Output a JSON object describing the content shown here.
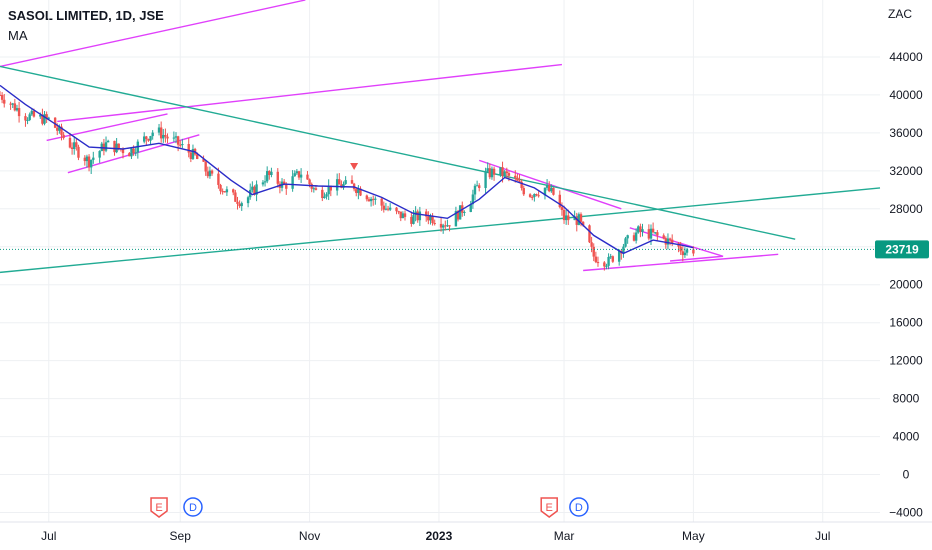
{
  "header": {
    "title": "SASOL LIMITED, 1D, JSE",
    "indicator": "MA"
  },
  "colors": {
    "up": "#26a69a",
    "down": "#ef5350",
    "ma": "#2a2cc8",
    "trend_magenta": "#e040fb",
    "trend_teal": "#22ab94",
    "last_price_bg": "#089981",
    "grid": "#eef0f3"
  },
  "chart_data": {
    "type": "candlestick",
    "currency_label": "ZAC",
    "last_price_label": "23719",
    "last_price": 23719,
    "y_ticks": [
      "44000",
      "40000",
      "36000",
      "32000",
      "28000",
      "24000",
      "20000",
      "16000",
      "12000",
      "8000",
      "4000",
      "0",
      "−4000"
    ],
    "y_tick_values": [
      44000,
      40000,
      36000,
      32000,
      28000,
      24000,
      20000,
      16000,
      12000,
      8000,
      4000,
      0,
      -4000
    ],
    "ylim": [
      -5000,
      50000
    ],
    "x_ticks": [
      "Jul",
      "Sep",
      "Nov",
      "2023",
      "Mar",
      "May",
      "Jul"
    ],
    "x_tick_dates": [
      "2022-07-01",
      "2022-09-01",
      "2022-11-01",
      "2023-01-01",
      "2023-03-01",
      "2023-05-01",
      "2023-07-01"
    ],
    "x_bold": [
      "2023"
    ],
    "xlim": [
      "2022-06-08",
      "2023-07-28"
    ],
    "events": [
      {
        "kind": "E",
        "date": "2022-08-22"
      },
      {
        "kind": "D",
        "date": "2022-09-07"
      },
      {
        "kind": "E",
        "date": "2023-02-22"
      },
      {
        "kind": "D",
        "date": "2023-03-08"
      }
    ],
    "flag": {
      "date": "2022-11-22",
      "price": 32400
    },
    "price_path": [
      [
        "2022-06-08",
        40000
      ],
      [
        "2022-06-20",
        37800
      ],
      [
        "2022-07-01",
        37400
      ],
      [
        "2022-07-10",
        35000
      ],
      [
        "2022-07-20",
        33000
      ],
      [
        "2022-07-28",
        34800
      ],
      [
        "2022-08-08",
        34000
      ],
      [
        "2022-08-20",
        36300
      ],
      [
        "2022-08-30",
        35000
      ],
      [
        "2022-09-08",
        33500
      ],
      [
        "2022-09-15",
        31500
      ],
      [
        "2022-09-25",
        29300
      ],
      [
        "2022-10-01",
        28700
      ],
      [
        "2022-10-12",
        31600
      ],
      [
        "2022-10-20",
        30400
      ],
      [
        "2022-10-28",
        31800
      ],
      [
        "2022-11-05",
        29500
      ],
      [
        "2022-11-12",
        30500
      ],
      [
        "2022-11-22",
        30400
      ],
      [
        "2022-12-01",
        29000
      ],
      [
        "2022-12-10",
        27600
      ],
      [
        "2022-12-18",
        27000
      ],
      [
        "2022-12-26",
        27300
      ],
      [
        "2023-01-05",
        26400
      ],
      [
        "2023-01-15",
        28600
      ],
      [
        "2023-01-22",
        31500
      ],
      [
        "2023-01-28",
        32000
      ],
      [
        "2023-02-05",
        31200
      ],
      [
        "2023-02-12",
        29500
      ],
      [
        "2023-02-20",
        30200
      ],
      [
        "2023-02-24",
        29500
      ],
      [
        "2023-03-01",
        27000
      ],
      [
        "2023-03-08",
        26800
      ],
      [
        "2023-03-15",
        23000
      ],
      [
        "2023-03-22",
        22400
      ],
      [
        "2023-03-29",
        24200
      ],
      [
        "2023-04-05",
        25600
      ],
      [
        "2023-04-12",
        25300
      ],
      [
        "2023-04-20",
        24500
      ],
      [
        "2023-04-27",
        23500
      ],
      [
        "2023-05-01",
        23719
      ]
    ],
    "ma_path": [
      [
        "2022-06-08",
        41000
      ],
      [
        "2022-06-20",
        39000
      ],
      [
        "2022-07-05",
        36800
      ],
      [
        "2022-07-20",
        34500
      ],
      [
        "2022-08-05",
        34300
      ],
      [
        "2022-08-22",
        34900
      ],
      [
        "2022-09-08",
        34000
      ],
      [
        "2022-09-25",
        31000
      ],
      [
        "2022-10-05",
        29500
      ],
      [
        "2022-10-20",
        30600
      ],
      [
        "2022-11-05",
        30400
      ],
      [
        "2022-11-22",
        30300
      ],
      [
        "2022-12-05",
        29200
      ],
      [
        "2022-12-20",
        27500
      ],
      [
        "2023-01-05",
        27000
      ],
      [
        "2023-01-20",
        29000
      ],
      [
        "2023-02-01",
        31300
      ],
      [
        "2023-02-15",
        30200
      ],
      [
        "2023-03-01",
        28200
      ],
      [
        "2023-03-15",
        25200
      ],
      [
        "2023-03-29",
        23300
      ],
      [
        "2023-04-12",
        24700
      ],
      [
        "2023-04-25",
        24200
      ],
      [
        "2023-05-01",
        23900
      ]
    ],
    "trendlines": [
      {
        "color": "magenta",
        "from": [
          "2022-06-08",
          43000
        ],
        "to": [
          "2022-10-30",
          50000
        ]
      },
      {
        "color": "magenta",
        "from": [
          "2022-07-05",
          37200
        ],
        "to": [
          "2023-02-28",
          43200
        ]
      },
      {
        "color": "magenta",
        "from": [
          "2022-06-30",
          35200
        ],
        "to": [
          "2022-08-26",
          38000
        ]
      },
      {
        "color": "magenta",
        "from": [
          "2022-07-10",
          31800
        ],
        "to": [
          "2022-09-10",
          35800
        ]
      },
      {
        "color": "magenta",
        "from": [
          "2023-01-20",
          33100
        ],
        "to": [
          "2023-03-28",
          28000
        ]
      },
      {
        "color": "magenta",
        "from": [
          "2023-03-10",
          21500
        ],
        "to": [
          "2023-06-10",
          23200
        ]
      },
      {
        "color": "magenta",
        "from": [
          "2023-04-01",
          26000
        ],
        "to": [
          "2023-05-15",
          23000
        ]
      },
      {
        "color": "magenta",
        "from": [
          "2023-04-20",
          22500
        ],
        "to": [
          "2023-05-15",
          23000
        ]
      },
      {
        "color": "teal",
        "from": [
          "2022-06-08",
          43000
        ],
        "to": [
          "2023-06-18",
          24800
        ]
      },
      {
        "color": "teal",
        "from": [
          "2022-06-08",
          21300
        ],
        "to": [
          "2023-07-28",
          30200
        ]
      }
    ]
  }
}
